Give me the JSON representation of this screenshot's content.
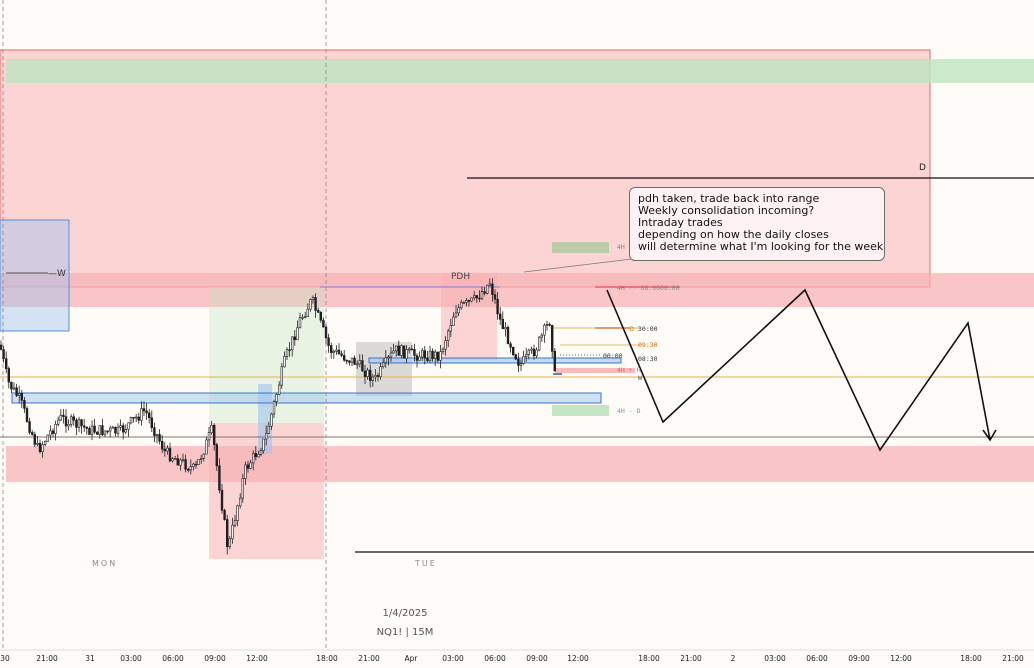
{
  "chart_data": {
    "type": "candlestick",
    "symbol_label": "NQ1! | 15M",
    "date_label": "1/4/2025",
    "day_labels": [
      "MON",
      "TUE"
    ],
    "x_ticks": [
      "30",
      "21:00",
      "31",
      "03:00",
      "06:00",
      "09:00",
      "12:00",
      "18:00",
      "21:00",
      "Apr",
      "03:00",
      "06:00",
      "09:00",
      "12:00",
      "18:00",
      "21:00",
      "2",
      "03:00",
      "06:00",
      "09:00",
      "12:00",
      "18:00",
      "21:00"
    ],
    "annotation_lines": [
      "pdh taken, trade back into range",
      "Weekly consolidation incoming?",
      "Intraday trades",
      "depending on how the daily closes",
      "will determine what I'm looking for the week"
    ],
    "level_labels": {
      "daily": "D",
      "weekly": "—W",
      "pdh": "PDH",
      "h4_top": "4H",
      "h4_mid": "4H ·· 06:0006:00",
      "d_red": "D",
      "t1": "30:00",
      "t2": "09:30",
      "t3": "00:00",
      "t4": "08:30",
      "h4_r": "4H + R",
      "w_small": "W",
      "h4_d": "4H - D"
    },
    "colors": {
      "bull": "#1f1f1f",
      "bear": "#1f1f1f",
      "supply_zone": "#f7b3b6",
      "demand_zone": "#bfe3bf",
      "fvg_blue": "#9fc3f0",
      "projection": "#111111"
    }
  }
}
